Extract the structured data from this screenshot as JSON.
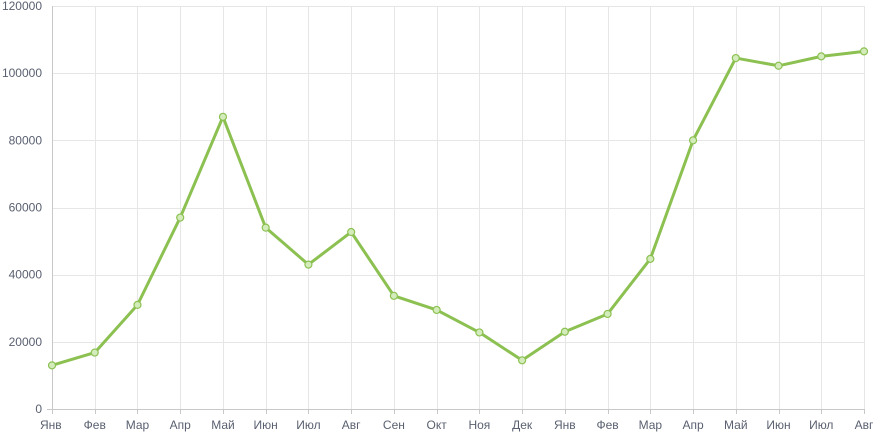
{
  "chart_data": {
    "type": "line",
    "title": "",
    "xlabel": "",
    "ylabel": "",
    "ylim": [
      0,
      120000
    ],
    "yticks": [
      0,
      20000,
      40000,
      60000,
      80000,
      100000,
      120000
    ],
    "grid": true,
    "categories": [
      "Янв",
      "Фев",
      "Мар",
      "Апр",
      "Май",
      "Июн",
      "Июл",
      "Авг",
      "Сен",
      "Окт",
      "Ноя",
      "Дек",
      "Янв",
      "Фев",
      "Мар",
      "Апр",
      "Май",
      "Июн",
      "Июл",
      "Авг"
    ],
    "series": [
      {
        "color": "#8cc152",
        "values": [
          13000,
          16800,
          31000,
          57000,
          87000,
          54000,
          43000,
          52700,
          33700,
          29500,
          22800,
          14500,
          23000,
          28300,
          44700,
          80000,
          104500,
          102200,
          105000,
          106500
        ]
      }
    ]
  }
}
